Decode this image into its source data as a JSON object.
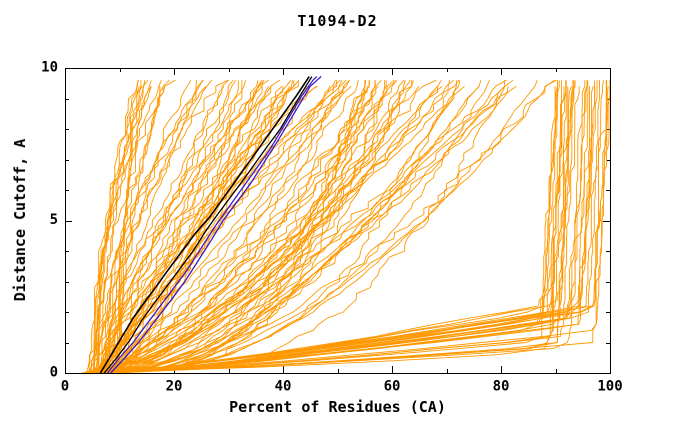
{
  "chart_data": {
    "type": "line",
    "title": "T1094-D2",
    "xlabel": "Percent of Residues (CA)",
    "ylabel": "Distance Cutoff, A",
    "xlim": [
      0,
      100
    ],
    "ylim": [
      0,
      10
    ],
    "x_ticks": [
      0,
      20,
      40,
      60,
      80,
      100
    ],
    "x_minor_ticks": [
      10,
      30,
      50,
      70,
      90
    ],
    "y_ticks": [
      0,
      5,
      10
    ],
    "y_minor_ticks": [
      1,
      2,
      3,
      4,
      6,
      7,
      8,
      9
    ],
    "grid": false,
    "legend": "none",
    "colors": {
      "axis": "#000000",
      "text": "#000000",
      "ensemble": "#ff9800",
      "highlight_black": "#000000",
      "highlight_blue": "#3a1bc8"
    },
    "ensemble": {
      "count": 135,
      "seed": 11,
      "line_width": 0.9,
      "color": "#ff9800",
      "x_start_range": [
        4,
        10
      ],
      "y_top_range": [
        9.5,
        9.8
      ]
    },
    "highlight_series": [
      {
        "name": "black-curve-1",
        "color": "#000000",
        "width": 1.6,
        "points": [
          [
            6.5,
            0
          ],
          [
            8.5,
            0.6
          ],
          [
            10.5,
            1.2
          ],
          [
            12.5,
            1.8
          ],
          [
            14.5,
            2.3
          ],
          [
            17,
            2.9
          ],
          [
            19,
            3.4
          ],
          [
            21.5,
            4.0
          ],
          [
            24,
            4.6
          ],
          [
            26.5,
            5.1
          ],
          [
            28.5,
            5.6
          ],
          [
            30.5,
            6.1
          ],
          [
            32.5,
            6.6
          ],
          [
            34.5,
            7.1
          ],
          [
            36.5,
            7.6
          ],
          [
            38.5,
            8.1
          ],
          [
            40.5,
            8.6
          ],
          [
            42.5,
            9.1
          ],
          [
            44,
            9.5
          ],
          [
            44.8,
            9.72
          ]
        ]
      },
      {
        "name": "black-curve-2",
        "color": "#000000",
        "width": 1.3,
        "points": [
          [
            7.2,
            0
          ],
          [
            9.5,
            0.5
          ],
          [
            12,
            1.1
          ],
          [
            14,
            1.7
          ],
          [
            16,
            2.2
          ],
          [
            18.5,
            2.8
          ],
          [
            21,
            3.4
          ],
          [
            23.5,
            4.0
          ],
          [
            26,
            4.7
          ],
          [
            28,
            5.2
          ],
          [
            30.5,
            5.8
          ],
          [
            33,
            6.4
          ],
          [
            35,
            6.9
          ],
          [
            37,
            7.4
          ],
          [
            39.5,
            8.0
          ],
          [
            41.5,
            8.6
          ],
          [
            43.5,
            9.2
          ],
          [
            45.3,
            9.72
          ]
        ]
      },
      {
        "name": "blue-curve-1",
        "color": "#3a1bc8",
        "width": 1.3,
        "points": [
          [
            7.8,
            0
          ],
          [
            10,
            0.5
          ],
          [
            12.5,
            1.0
          ],
          [
            15,
            1.6
          ],
          [
            17.5,
            2.2
          ],
          [
            20,
            2.8
          ],
          [
            22.5,
            3.4
          ],
          [
            25,
            4.1
          ],
          [
            27.5,
            4.8
          ],
          [
            29.5,
            5.3
          ],
          [
            31.5,
            5.8
          ],
          [
            33.5,
            6.3
          ],
          [
            35.5,
            6.8
          ],
          [
            37.5,
            7.3
          ],
          [
            39.5,
            7.9
          ],
          [
            41.5,
            8.5
          ],
          [
            43.5,
            9.1
          ],
          [
            45.5,
            9.6
          ],
          [
            46.2,
            9.72
          ]
        ]
      },
      {
        "name": "blue-curve-2",
        "color": "#3a1bc8",
        "width": 1.3,
        "points": [
          [
            8.4,
            0
          ],
          [
            11,
            0.5
          ],
          [
            13.5,
            1.0
          ],
          [
            16.5,
            1.7
          ],
          [
            19.5,
            2.4
          ],
          [
            22,
            3.0
          ],
          [
            24.5,
            3.7
          ],
          [
            27,
            4.4
          ],
          [
            29,
            5.0
          ],
          [
            31.5,
            5.6
          ],
          [
            34,
            6.2
          ],
          [
            36.5,
            6.9
          ],
          [
            39,
            7.6
          ],
          [
            41,
            8.2
          ],
          [
            43,
            8.8
          ],
          [
            45,
            9.4
          ],
          [
            47,
            9.72
          ]
        ]
      }
    ]
  }
}
